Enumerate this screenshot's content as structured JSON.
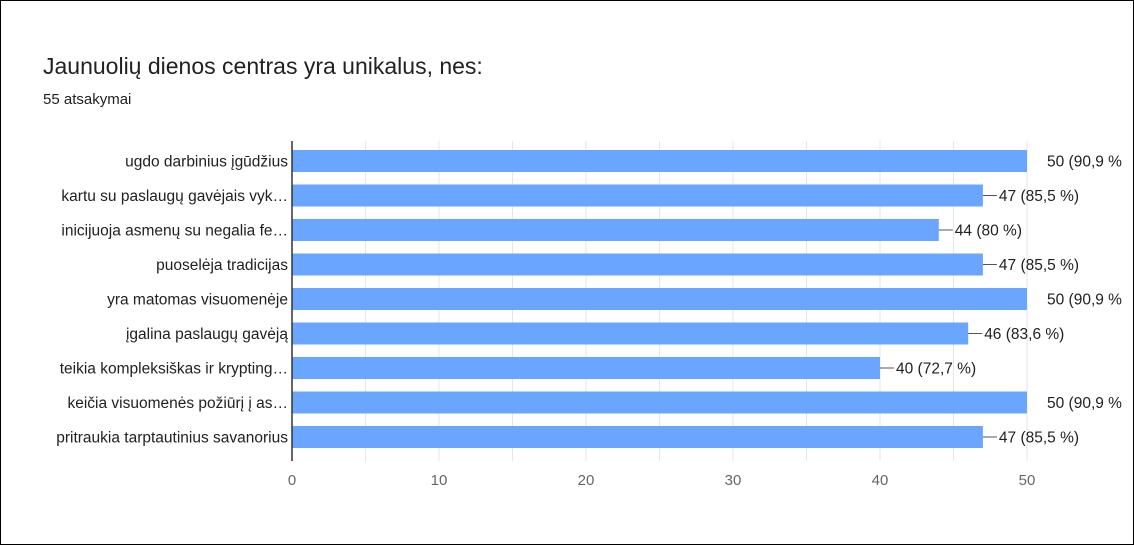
{
  "form": {
    "question": "Jaunuolių dienos centras yra unikalus, nes:",
    "responses": "55 atsakymai"
  },
  "colors": {
    "bar": "#6aa6ff",
    "axis": "#333333",
    "grid": "#e6e6e6",
    "text": "#202124",
    "tick_text": "#666666"
  },
  "chart_data": {
    "type": "bar",
    "orientation": "horizontal",
    "title": "",
    "xlabel": "",
    "ylabel": "",
    "xlim": [
      0,
      50
    ],
    "xticks": [
      0,
      10,
      20,
      30,
      40,
      50
    ],
    "grid": true,
    "legend": "none",
    "categories": [
      "ugdo darbinius įgūdžius",
      "kartu su paslaugų gavėjais vyk…",
      "inicijuoja asmenų su negalia fe…",
      "puoselėja tradicijas",
      "yra matomas visuomenėje",
      "įgalina paslaugų gavėją",
      "teikia kompleksiškas ir krypting…",
      "keičia visuomenės požiūrį į as…",
      "pritraukia tarptautinius savanorius"
    ],
    "values": [
      50,
      47,
      44,
      47,
      50,
      46,
      40,
      50,
      47
    ],
    "data_labels": [
      "50 (90,9 %",
      "47 (85,5 %)",
      "44 (80 %)",
      "47 (85,5 %)",
      "50 (90,9 %",
      "46 (83,6 %)",
      "40 (72,7 %)",
      "50 (90,9 %",
      "47 (85,5 %)"
    ]
  }
}
